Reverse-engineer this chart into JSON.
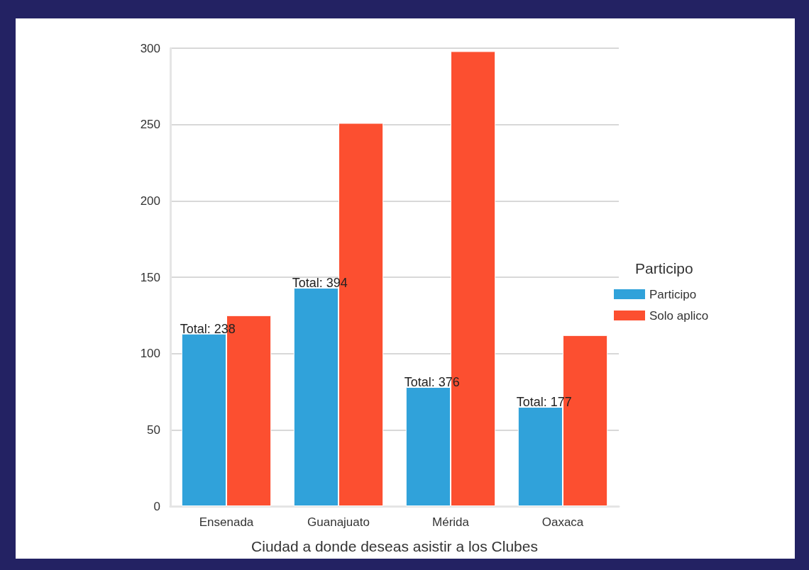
{
  "chart_data": {
    "type": "bar",
    "xlabel": "Ciudad a donde deseas asistir a los Clubes",
    "legend_title": "Participo",
    "categories": [
      "Ensenada",
      "Guanajuato",
      "Mérida",
      "Oaxaca"
    ],
    "series": [
      {
        "name": "Participo",
        "color": "#30a2da",
        "values": [
          113,
          143,
          78,
          65
        ]
      },
      {
        "name": "Solo aplico",
        "color": "#fc4f30",
        "values": [
          125,
          251,
          298,
          112
        ]
      }
    ],
    "ylim": [
      0,
      300
    ],
    "yticks": [
      0,
      50,
      100,
      150,
      200,
      250,
      300
    ],
    "grid": "y",
    "legend": "right",
    "annotations": [
      {
        "text": "Total: 238",
        "x": "Ensenada",
        "y": 113
      },
      {
        "text": "Total: 394",
        "x": "Guanajuato",
        "y": 143
      },
      {
        "text": "Total: 376",
        "x": "Mérida",
        "y": 78
      },
      {
        "text": "Total: 177",
        "x": "Oaxaca",
        "y": 65
      }
    ]
  }
}
